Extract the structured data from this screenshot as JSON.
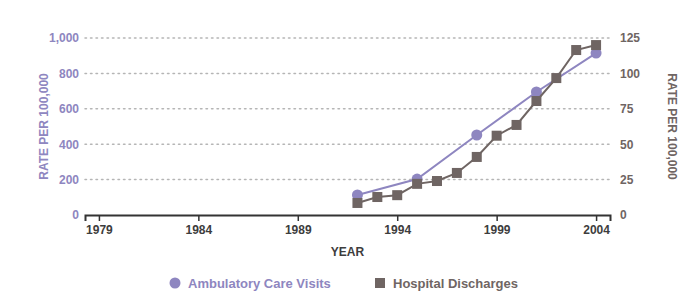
{
  "chart_data": {
    "type": "line",
    "x_label": "YEAR",
    "y_label": "RATE PER 100,000",
    "y2_label": "RATE PER 100,000",
    "xlim": [
      1978.3,
      2004.7
    ],
    "xticks": [
      1979,
      1984,
      1989,
      1994,
      1999,
      2004
    ],
    "ylim": [
      0,
      1000
    ],
    "yticks": [
      0,
      200,
      400,
      600,
      800,
      {
        "value": 1000,
        "label": "1,000"
      }
    ],
    "y2lim": [
      0,
      125
    ],
    "y2ticks": [
      0,
      25,
      50,
      75,
      100,
      125
    ],
    "grid": true,
    "legend": "bottom",
    "series": [
      {
        "name": "Ambulatory Care Visits",
        "color": "#8e86c0",
        "marker": "circle",
        "x": [
          1992,
          1995,
          1998,
          2001,
          2004
        ],
        "values": [
          113,
          203,
          452,
          695,
          915
        ]
      },
      {
        "name": "Hospital Discharges",
        "color": "#6f6563",
        "marker": "square",
        "axis": "y2",
        "x": [
          1992,
          1993,
          1994,
          1995,
          1996,
          1997,
          1998,
          1999,
          2000,
          2001,
          2002,
          2003,
          2004
        ],
        "values": [
          8.5,
          12.7,
          14,
          22,
          24,
          29.7,
          41,
          56,
          63.6,
          80.5,
          96.7,
          116.5,
          120
        ]
      }
    ]
  }
}
